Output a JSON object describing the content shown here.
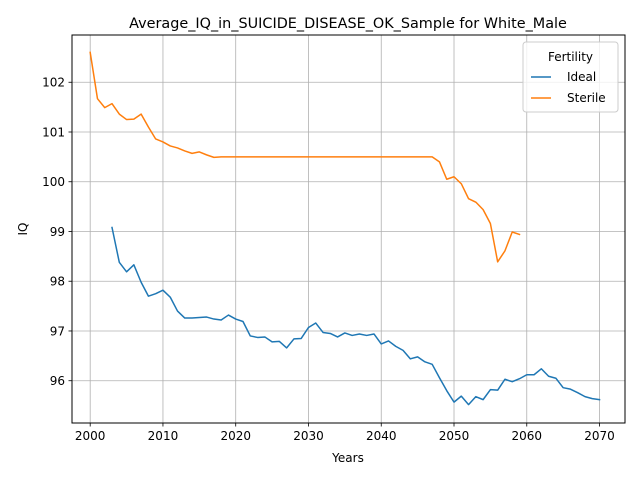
{
  "chart_data": {
    "type": "line",
    "title": "Average_IQ_in_SUICIDE_DISEASE_OK_Sample for White_Male",
    "xlabel": "Years",
    "ylabel": "IQ",
    "xlim": [
      1997.5,
      2073.5
    ],
    "ylim": [
      95.15,
      102.95
    ],
    "xticks": [
      2000,
      2010,
      2020,
      2030,
      2040,
      2050,
      2060,
      2070
    ],
    "yticks": [
      96,
      97,
      98,
      99,
      100,
      101,
      102
    ],
    "grid": true,
    "legend": {
      "title": "Fertility",
      "placement": "top-right"
    },
    "series": [
      {
        "name": "Ideal",
        "color": "#1f77b4",
        "x": [
          2003,
          2004,
          2005,
          2006,
          2007,
          2008,
          2009,
          2010,
          2011,
          2012,
          2013,
          2014,
          2015,
          2016,
          2017,
          2018,
          2019,
          2020,
          2021,
          2022,
          2023,
          2024,
          2025,
          2026,
          2027,
          2028,
          2029,
          2030,
          2031,
          2032,
          2033,
          2034,
          2035,
          2036,
          2037,
          2038,
          2039,
          2040,
          2041,
          2042,
          2043,
          2044,
          2045,
          2046,
          2047,
          2048,
          2049,
          2050,
          2051,
          2052,
          2053,
          2054,
          2055,
          2056,
          2057,
          2058,
          2059,
          2060,
          2061,
          2062,
          2063,
          2064,
          2065,
          2066,
          2067,
          2068,
          2069,
          2070
        ],
        "values": [
          99.08,
          98.38,
          98.19,
          98.33,
          97.98,
          97.7,
          97.75,
          97.82,
          97.68,
          97.4,
          97.26,
          97.26,
          97.27,
          97.28,
          97.24,
          97.22,
          97.32,
          97.24,
          97.19,
          96.9,
          96.87,
          96.88,
          96.78,
          96.79,
          96.66,
          96.84,
          96.85,
          97.07,
          97.16,
          96.97,
          96.95,
          96.88,
          96.96,
          96.91,
          96.94,
          96.91,
          96.94,
          96.74,
          96.8,
          96.69,
          96.61,
          96.44,
          96.48,
          96.38,
          96.33,
          96.06,
          95.8,
          95.57,
          95.69,
          95.52,
          95.68,
          95.62,
          95.82,
          95.81,
          96.03,
          95.98,
          96.04,
          96.12,
          96.12,
          96.24,
          96.09,
          96.05,
          95.86,
          95.83,
          95.76,
          95.68,
          95.64,
          95.62
        ]
      },
      {
        "name": "Sterile",
        "color": "#ff7f0e",
        "x": [
          2000,
          2001,
          2002,
          2003,
          2004,
          2005,
          2006,
          2007,
          2008,
          2009,
          2010,
          2011,
          2012,
          2013,
          2014,
          2015,
          2016,
          2017,
          2018,
          2019,
          2020,
          2021,
          2022,
          2023,
          2024,
          2025,
          2026,
          2027,
          2028,
          2029,
          2030,
          2031,
          2032,
          2033,
          2034,
          2035,
          2036,
          2037,
          2038,
          2039,
          2040,
          2041,
          2042,
          2043,
          2044,
          2045,
          2046,
          2047,
          2048,
          2049,
          2050,
          2051,
          2052,
          2053,
          2054,
          2055,
          2056,
          2057,
          2058,
          2059
        ],
        "values": [
          102.6,
          101.67,
          101.49,
          101.57,
          101.36,
          101.25,
          101.26,
          101.36,
          101.1,
          100.86,
          100.8,
          100.72,
          100.68,
          100.62,
          100.57,
          100.6,
          100.54,
          100.49,
          100.5,
          100.5,
          100.5,
          100.5,
          100.5,
          100.5,
          100.5,
          100.5,
          100.5,
          100.5,
          100.5,
          100.5,
          100.5,
          100.5,
          100.5,
          100.5,
          100.5,
          100.5,
          100.5,
          100.5,
          100.5,
          100.5,
          100.5,
          100.5,
          100.5,
          100.5,
          100.5,
          100.5,
          100.5,
          100.5,
          100.4,
          100.05,
          100.1,
          99.96,
          99.66,
          99.59,
          99.44,
          99.16,
          98.39,
          98.61,
          98.99,
          98.94
        ]
      }
    ]
  }
}
